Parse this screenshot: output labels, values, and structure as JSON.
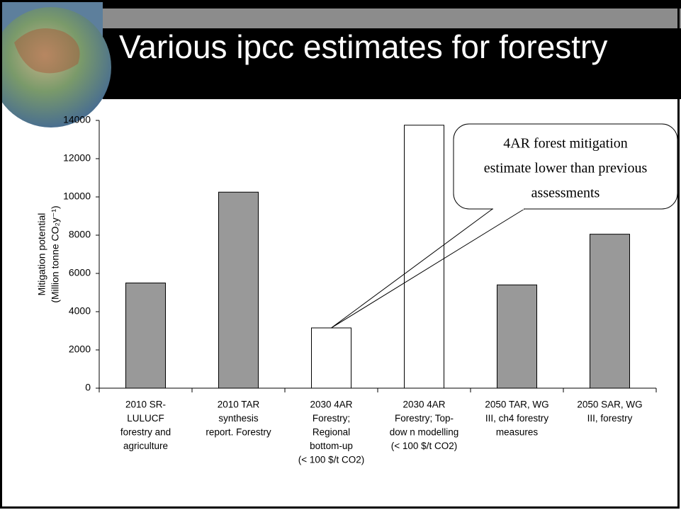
{
  "header": {
    "title": "Various ipcc estimates for forestry"
  },
  "chart_data": {
    "type": "bar",
    "ylabel": [
      "Mitigation potential",
      "(Million tonne CO₂y⁻¹)"
    ],
    "categories": [
      [
        "2010  SR-",
        "LULUCF",
        "forestry and",
        "agriculture"
      ],
      [
        "2010  TAR",
        "synthesis",
        "report. Forestry"
      ],
      [
        "2030  4AR",
        "Forestry;",
        "Regional",
        "bottom-up",
        "(< 100 $/t CO2)"
      ],
      [
        "2030  4AR",
        "Forestry;  Top-",
        "dow n modelling",
        "(< 100 $/t CO2)"
      ],
      [
        "2050  TAR, WG",
        "III, ch4 forestry",
        "measures"
      ],
      [
        "2050 SAR, WG",
        "III, forestry"
      ]
    ],
    "values": [
      5500,
      10250,
      3150,
      13750,
      5400,
      8050
    ],
    "colors": [
      "#999999",
      "#999999",
      "#ffffff",
      "#ffffff",
      "#999999",
      "#999999"
    ],
    "ylim": [
      0,
      14000
    ],
    "yticks": [
      0,
      2000,
      4000,
      6000,
      8000,
      10000,
      12000,
      14000
    ],
    "annotation": {
      "lines": [
        "4AR forest mitigation",
        "estimate lower than previous",
        "assessments"
      ],
      "target": 2
    }
  }
}
